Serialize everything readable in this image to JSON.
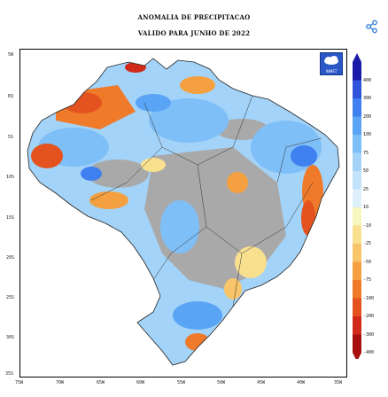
{
  "title_line1": "ANOMALIA DE PRECIPITACAO",
  "title_line2": "VALIDO PARA JUNHO DE 2022",
  "share_icon": "share-icon",
  "logo": {
    "name": "INMET",
    "icon": "cloud-logo-icon"
  },
  "lat_labels": [
    "5N",
    "EQ",
    "5S",
    "10S",
    "15S",
    "20S",
    "25S",
    "30S",
    "35S"
  ],
  "lon_labels": [
    "75W",
    "70W",
    "65W",
    "60W",
    "55W",
    "50W",
    "45W",
    "40W",
    "35W"
  ],
  "legend": {
    "values": [
      "400",
      "300",
      "200",
      "100",
      "75",
      "50",
      "25",
      "10",
      "-10",
      "-25",
      "-50",
      "-75",
      "-100",
      "-200",
      "-300",
      "-400"
    ],
    "colors": [
      "#1a1aa8",
      "#2f53d9",
      "#3f80f0",
      "#5aa4f5",
      "#7fbff7",
      "#a3d3f8",
      "#c2e3fa",
      "#ddf0fc",
      "#f6f6bf",
      "#f9e08f",
      "#f8c56a",
      "#f5a040",
      "#ef7a2a",
      "#e4531f",
      "#d12a1a",
      "#a81010"
    ]
  }
}
